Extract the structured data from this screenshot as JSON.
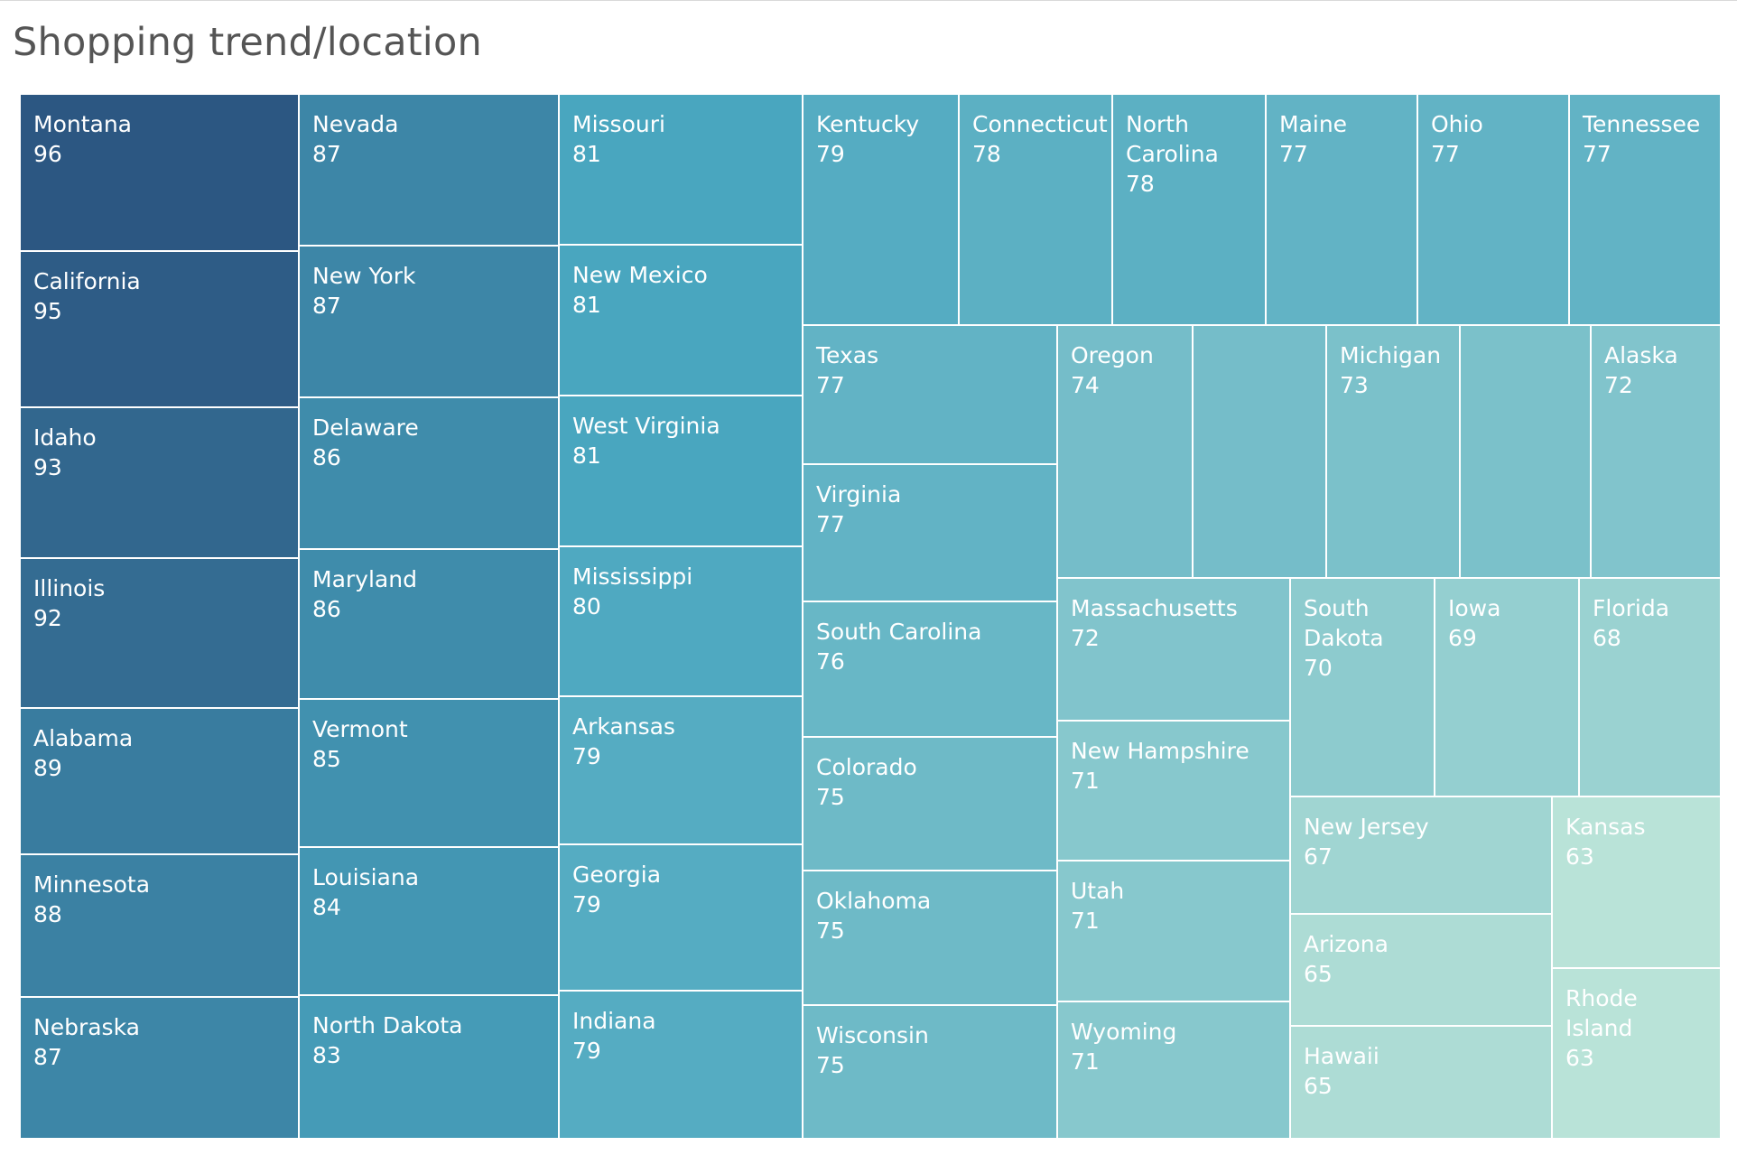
{
  "title": "Shopping trend/location",
  "chart_data": {
    "type": "treemap",
    "title": "Shopping trend/location",
    "color_scale": {
      "low": "#b9e3d8",
      "mid": "#48a5bf",
      "high": "#2c5782"
    },
    "items": [
      {
        "name": "Montana",
        "label": "Montana",
        "value": 96
      },
      {
        "name": "California",
        "label": "California",
        "value": 95
      },
      {
        "name": "Idaho",
        "label": "Idaho",
        "value": 93
      },
      {
        "name": "Illinois",
        "label": "Illinois",
        "value": 92
      },
      {
        "name": "Alabama",
        "label": "Alabama",
        "value": 89
      },
      {
        "name": "Minnesota",
        "label": "Minnesota",
        "value": 88
      },
      {
        "name": "Nebraska",
        "label": "Nebraska",
        "value": 87
      },
      {
        "name": "Nevada",
        "label": "Nevada",
        "value": 87
      },
      {
        "name": "New York",
        "label": "New York",
        "value": 87
      },
      {
        "name": "Delaware",
        "label": "Delaware",
        "value": 86
      },
      {
        "name": "Maryland",
        "label": "Maryland",
        "value": 86
      },
      {
        "name": "Vermont",
        "label": "Vermont",
        "value": 85
      },
      {
        "name": "Louisiana",
        "label": "Louisiana",
        "value": 84
      },
      {
        "name": "North Dakota",
        "label": "North Dakota",
        "value": 83
      },
      {
        "name": "Missouri",
        "label": "Missouri",
        "value": 81
      },
      {
        "name": "New Mexico",
        "label": "New Mexico",
        "value": 81
      },
      {
        "name": "West Virginia",
        "label": "West Virginia",
        "value": 81
      },
      {
        "name": "Mississippi",
        "label": "Mississippi",
        "value": 80
      },
      {
        "name": "Arkansas",
        "label": "Arkansas",
        "value": 79
      },
      {
        "name": "Georgia",
        "label": "Georgia",
        "value": 79
      },
      {
        "name": "Indiana",
        "label": "Indiana",
        "value": 79
      },
      {
        "name": "Kentucky",
        "label": "Kentucky",
        "value": 79
      },
      {
        "name": "Connecticut",
        "label": "Connecticut",
        "value": 78
      },
      {
        "name": "North Carolina",
        "label": "North\nCarolina",
        "value": 78
      },
      {
        "name": "Maine",
        "label": "Maine",
        "value": 77
      },
      {
        "name": "Ohio",
        "label": "Ohio",
        "value": 77
      },
      {
        "name": "Tennessee",
        "label": "Tennessee",
        "value": 77
      },
      {
        "name": "Texas",
        "label": "Texas",
        "value": 77
      },
      {
        "name": "Virginia",
        "label": "Virginia",
        "value": 77
      },
      {
        "name": "South Carolina",
        "label": "South Carolina",
        "value": 76
      },
      {
        "name": "Colorado",
        "label": "Colorado",
        "value": 75
      },
      {
        "name": "Oklahoma",
        "label": "Oklahoma",
        "value": 75
      },
      {
        "name": "Wisconsin",
        "label": "Wisconsin",
        "value": 75
      },
      {
        "name": "Oregon",
        "label": "Oregon",
        "value": 74
      },
      {
        "name": "",
        "label": "",
        "value": null,
        "shade": 74
      },
      {
        "name": "Michigan",
        "label": "Michigan",
        "value": 73
      },
      {
        "name": "",
        "label": "",
        "value": null,
        "shade": 73
      },
      {
        "name": "Alaska",
        "label": "Alaska",
        "value": 72
      },
      {
        "name": "Massachusetts",
        "label": "Massachusetts",
        "value": 72
      },
      {
        "name": "New Hampshire",
        "label": "New Hampshire",
        "value": 71
      },
      {
        "name": "Utah",
        "label": "Utah",
        "value": 71
      },
      {
        "name": "Wyoming",
        "label": "Wyoming",
        "value": 71
      },
      {
        "name": "South Dakota",
        "label": "South\nDakota",
        "value": 70
      },
      {
        "name": "Iowa",
        "label": "Iowa",
        "value": 69
      },
      {
        "name": "Florida",
        "label": "Florida",
        "value": 68
      },
      {
        "name": "New Jersey",
        "label": "New Jersey",
        "value": 67
      },
      {
        "name": "Arizona",
        "label": "Arizona",
        "value": 65
      },
      {
        "name": "Hawaii",
        "label": "Hawaii",
        "value": 65
      },
      {
        "name": "Kansas",
        "label": "Kansas",
        "value": 63
      },
      {
        "name": "Rhode Island",
        "label": "Rhode Island",
        "value": 63
      }
    ]
  }
}
